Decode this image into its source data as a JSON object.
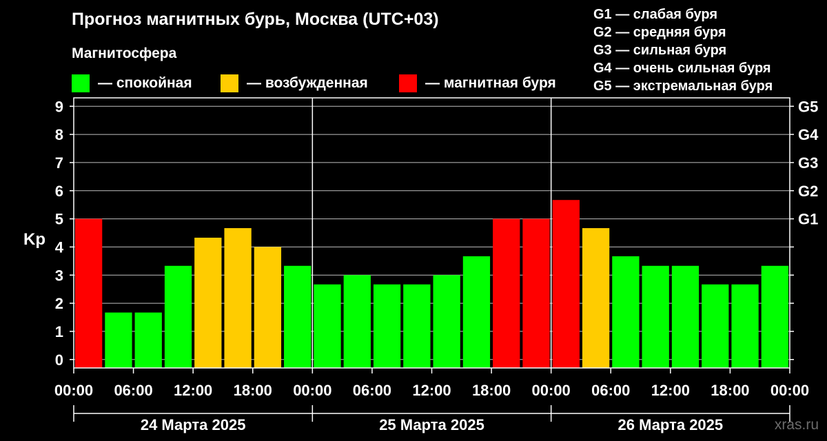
{
  "title": "Прогноз магнитных бурь, Москва (UTC+03)",
  "subtitle": "Магнитосфера",
  "legend": [
    {
      "color": "#00ff00",
      "label": "— спокойная"
    },
    {
      "color": "#ffcc00",
      "label": "— возбужденная"
    },
    {
      "color": "#ff0000",
      "label": "— магнитная буря"
    }
  ],
  "g_scale": [
    "G1 — слабая буря",
    "G2 — средняя буря",
    "G3 — сильная буря",
    "G4 — очень сильная буря",
    "G5 — экстремальная буря"
  ],
  "watermark": "xras.ru",
  "chart_data": {
    "type": "bar",
    "ylabel": "Kp",
    "ylim": [
      -0.3,
      9.3
    ],
    "yticks": [
      0,
      1,
      2,
      3,
      4,
      5,
      6,
      7,
      8,
      9
    ],
    "grid": true,
    "right_axis_labels": [
      {
        "value": 5,
        "label": "G1"
      },
      {
        "value": 6,
        "label": "G2"
      },
      {
        "value": 7,
        "label": "G3"
      },
      {
        "value": 8,
        "label": "G4"
      },
      {
        "value": 9,
        "label": "G5"
      }
    ],
    "xticks": [
      "00:00",
      "06:00",
      "12:00",
      "18:00",
      "00:00",
      "06:00",
      "12:00",
      "18:00",
      "00:00",
      "06:00",
      "12:00",
      "18:00",
      "00:00"
    ],
    "days": [
      "24 Марта 2025",
      "25 Марта 2025",
      "26 Марта 2025"
    ],
    "colors": {
      "quiet": "#00ff00",
      "active": "#ffcc00",
      "storm": "#ff0000"
    },
    "values": [
      5.0,
      1.67,
      1.67,
      3.33,
      4.33,
      4.67,
      4.0,
      3.33,
      2.67,
      3.0,
      2.67,
      2.67,
      3.0,
      3.67,
      5.0,
      5.0,
      5.67,
      4.67,
      3.67,
      3.33,
      3.33,
      2.67,
      2.67,
      3.33
    ],
    "levels": [
      "storm",
      "quiet",
      "quiet",
      "quiet",
      "active",
      "active",
      "active",
      "quiet",
      "quiet",
      "quiet",
      "quiet",
      "quiet",
      "quiet",
      "quiet",
      "storm",
      "storm",
      "storm",
      "active",
      "quiet",
      "quiet",
      "quiet",
      "quiet",
      "quiet",
      "quiet"
    ]
  }
}
